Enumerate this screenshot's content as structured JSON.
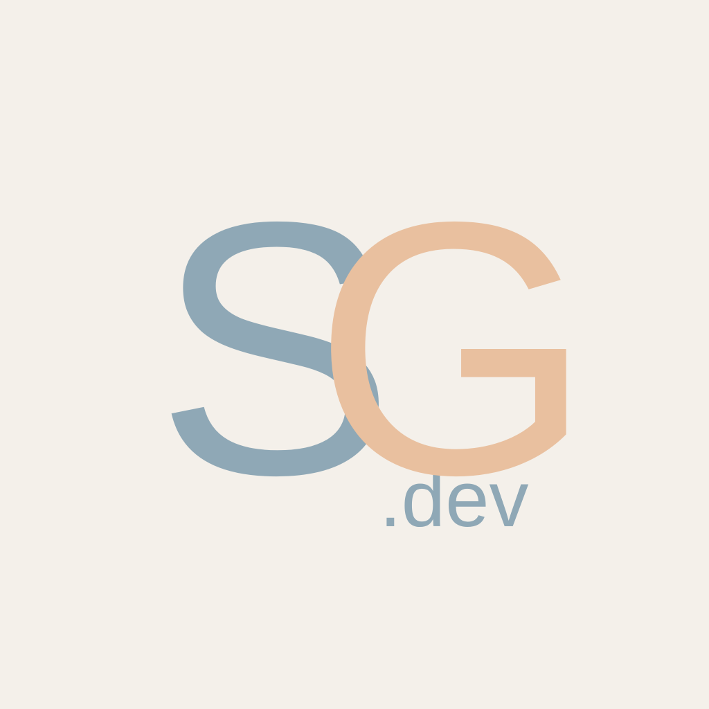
{
  "logo": {
    "first_letter": "S",
    "second_letter": "G",
    "suffix": ".dev"
  },
  "colors": {
    "background": "#f4f0ea",
    "first_letter": "#8fa8b6",
    "second_letter": "#e9c09f",
    "suffix": "#8fa8b6"
  }
}
